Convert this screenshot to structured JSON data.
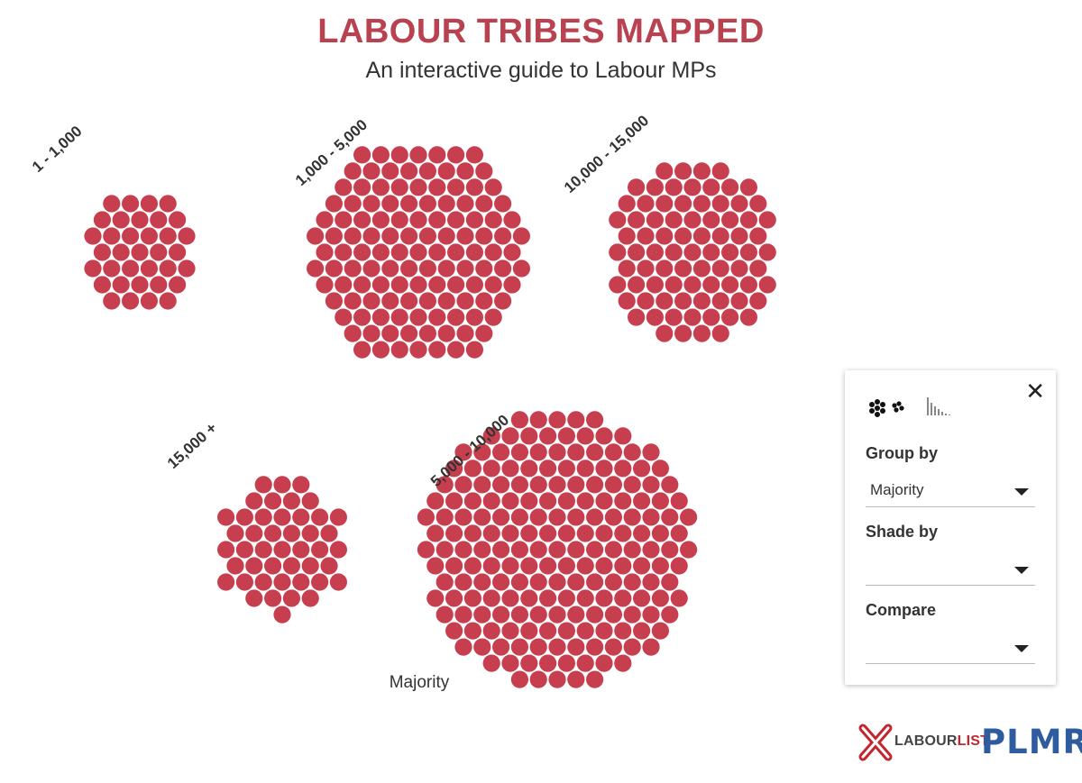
{
  "header": {
    "title": "LABOUR TRIBES MAPPED",
    "subtitle": "An interactive guide to Labour MPs"
  },
  "axis_caption": "Majority",
  "colors": {
    "dot": "#c73f4e",
    "title": "#b8424f",
    "labourlist_red": "#c3262e",
    "plmr_blue": "#2f5c9e"
  },
  "chart_data": {
    "type": "scatter",
    "grouping": "Majority",
    "clusters": [
      {
        "label": "1 - 1,000",
        "count": 35
      },
      {
        "label": "1,000 - 5,000",
        "count": 125
      },
      {
        "label": "10,000 - 15,000",
        "count": 81
      },
      {
        "label": "15,000 +",
        "count": 45
      },
      {
        "label": "5,000 - 10,000",
        "count": 197
      }
    ]
  },
  "panel": {
    "view_modes": [
      {
        "name": "clusters",
        "icon": "cluster-view-icon"
      },
      {
        "name": "histogram",
        "icon": "histogram-view-icon"
      }
    ],
    "close_icon": "close-icon",
    "group_by": {
      "label": "Group by",
      "value": "Majority"
    },
    "shade_by": {
      "label": "Shade by",
      "value": ""
    },
    "compare": {
      "label": "Compare",
      "value": ""
    }
  },
  "footer": {
    "labourlist_part1": "LABOUR",
    "labourlist_part2": "LIST",
    "plmr": "PLMR"
  }
}
